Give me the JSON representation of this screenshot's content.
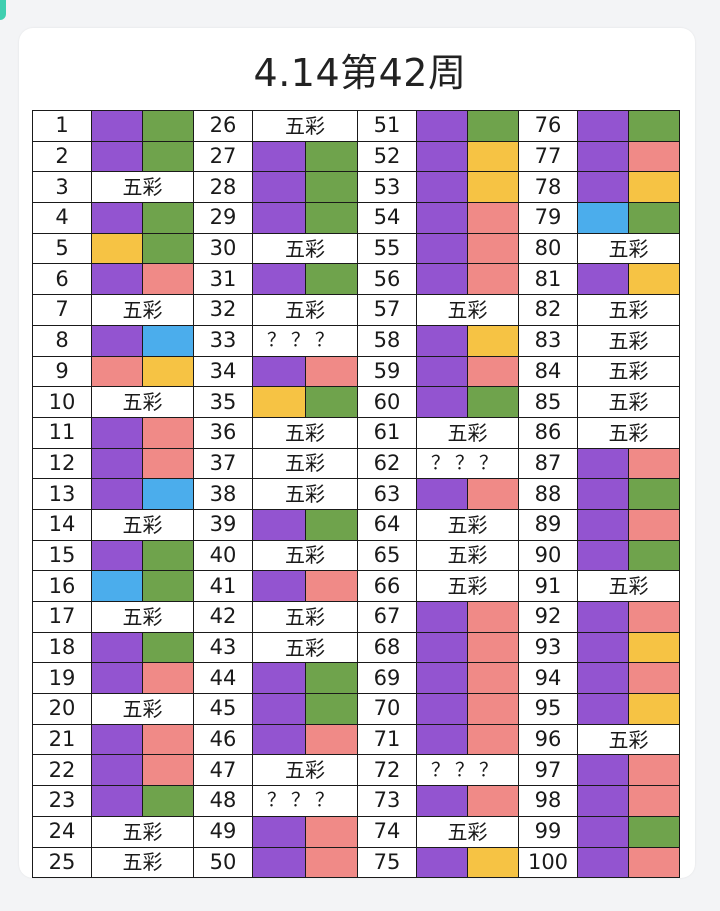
{
  "title": "4.14第42周",
  "colors": {
    "purple": "#9354d0",
    "green": "#6fa34c",
    "yellow": "#f6c344",
    "pink": "#f08a87",
    "blue": "#4badec"
  },
  "entries": [
    {
      "n": "1",
      "kind": "pair",
      "left": "purple",
      "right": "green"
    },
    {
      "n": "2",
      "kind": "pair",
      "left": "purple",
      "right": "green"
    },
    {
      "n": "3",
      "kind": "text",
      "text": "五彩"
    },
    {
      "n": "4",
      "kind": "pair",
      "left": "purple",
      "right": "green"
    },
    {
      "n": "5",
      "kind": "pair",
      "left": "yellow",
      "right": "green"
    },
    {
      "n": "6",
      "kind": "pair",
      "left": "purple",
      "right": "pink"
    },
    {
      "n": "7",
      "kind": "text",
      "text": "五彩"
    },
    {
      "n": "8",
      "kind": "pair",
      "left": "purple",
      "right": "blue"
    },
    {
      "n": "9",
      "kind": "pair",
      "left": "pink",
      "right": "yellow"
    },
    {
      "n": "10",
      "kind": "text",
      "text": "五彩"
    },
    {
      "n": "11",
      "kind": "pair",
      "left": "purple",
      "right": "pink"
    },
    {
      "n": "12",
      "kind": "pair",
      "left": "purple",
      "right": "pink"
    },
    {
      "n": "13",
      "kind": "pair",
      "left": "purple",
      "right": "blue"
    },
    {
      "n": "14",
      "kind": "text",
      "text": "五彩"
    },
    {
      "n": "15",
      "kind": "pair",
      "left": "purple",
      "right": "green"
    },
    {
      "n": "16",
      "kind": "pair",
      "left": "blue",
      "right": "green"
    },
    {
      "n": "17",
      "kind": "text",
      "text": "五彩"
    },
    {
      "n": "18",
      "kind": "pair",
      "left": "purple",
      "right": "green"
    },
    {
      "n": "19",
      "kind": "pair",
      "left": "purple",
      "right": "pink"
    },
    {
      "n": "20",
      "kind": "text",
      "text": "五彩"
    },
    {
      "n": "21",
      "kind": "pair",
      "left": "purple",
      "right": "pink"
    },
    {
      "n": "22",
      "kind": "pair",
      "left": "purple",
      "right": "pink"
    },
    {
      "n": "23",
      "kind": "pair",
      "left": "purple",
      "right": "green"
    },
    {
      "n": "24",
      "kind": "text",
      "text": "五彩"
    },
    {
      "n": "25",
      "kind": "text",
      "text": "五彩"
    },
    {
      "n": "26",
      "kind": "text",
      "text": "五彩"
    },
    {
      "n": "27",
      "kind": "pair",
      "left": "purple",
      "right": "green"
    },
    {
      "n": "28",
      "kind": "pair",
      "left": "purple",
      "right": "green"
    },
    {
      "n": "29",
      "kind": "pair",
      "left": "purple",
      "right": "green"
    },
    {
      "n": "30",
      "kind": "text",
      "text": "五彩"
    },
    {
      "n": "31",
      "kind": "pair",
      "left": "purple",
      "right": "green"
    },
    {
      "n": "32",
      "kind": "text",
      "text": "五彩"
    },
    {
      "n": "33",
      "kind": "q",
      "text": "？？？"
    },
    {
      "n": "34",
      "kind": "pair",
      "left": "purple",
      "right": "pink"
    },
    {
      "n": "35",
      "kind": "pair",
      "left": "yellow",
      "right": "green"
    },
    {
      "n": "36",
      "kind": "text",
      "text": "五彩"
    },
    {
      "n": "37",
      "kind": "text",
      "text": "五彩"
    },
    {
      "n": "38",
      "kind": "text",
      "text": "五彩"
    },
    {
      "n": "39",
      "kind": "pair",
      "left": "purple",
      "right": "green"
    },
    {
      "n": "40",
      "kind": "text",
      "text": "五彩"
    },
    {
      "n": "41",
      "kind": "pair",
      "left": "purple",
      "right": "pink"
    },
    {
      "n": "42",
      "kind": "text",
      "text": "五彩"
    },
    {
      "n": "43",
      "kind": "text",
      "text": "五彩"
    },
    {
      "n": "44",
      "kind": "pair",
      "left": "purple",
      "right": "green"
    },
    {
      "n": "45",
      "kind": "pair",
      "left": "purple",
      "right": "green"
    },
    {
      "n": "46",
      "kind": "pair",
      "left": "purple",
      "right": "pink"
    },
    {
      "n": "47",
      "kind": "text",
      "text": "五彩"
    },
    {
      "n": "48",
      "kind": "q",
      "text": "？？？"
    },
    {
      "n": "49",
      "kind": "pair",
      "left": "purple",
      "right": "pink"
    },
    {
      "n": "50",
      "kind": "pair",
      "left": "purple",
      "right": "pink"
    },
    {
      "n": "51",
      "kind": "pair",
      "left": "purple",
      "right": "green"
    },
    {
      "n": "52",
      "kind": "pair",
      "left": "purple",
      "right": "yellow"
    },
    {
      "n": "53",
      "kind": "pair",
      "left": "purple",
      "right": "yellow"
    },
    {
      "n": "54",
      "kind": "pair",
      "left": "purple",
      "right": "pink"
    },
    {
      "n": "55",
      "kind": "pair",
      "left": "purple",
      "right": "pink"
    },
    {
      "n": "56",
      "kind": "pair",
      "left": "purple",
      "right": "pink"
    },
    {
      "n": "57",
      "kind": "text",
      "text": "五彩"
    },
    {
      "n": "58",
      "kind": "pair",
      "left": "purple",
      "right": "yellow"
    },
    {
      "n": "59",
      "kind": "pair",
      "left": "purple",
      "right": "pink"
    },
    {
      "n": "60",
      "kind": "pair",
      "left": "purple",
      "right": "green"
    },
    {
      "n": "61",
      "kind": "text",
      "text": "五彩"
    },
    {
      "n": "62",
      "kind": "q",
      "text": "？？？"
    },
    {
      "n": "63",
      "kind": "pair",
      "left": "purple",
      "right": "pink"
    },
    {
      "n": "64",
      "kind": "text",
      "text": "五彩"
    },
    {
      "n": "65",
      "kind": "text",
      "text": "五彩"
    },
    {
      "n": "66",
      "kind": "text",
      "text": "五彩"
    },
    {
      "n": "67",
      "kind": "pair",
      "left": "purple",
      "right": "pink"
    },
    {
      "n": "68",
      "kind": "pair",
      "left": "purple",
      "right": "pink"
    },
    {
      "n": "69",
      "kind": "pair",
      "left": "purple",
      "right": "pink"
    },
    {
      "n": "70",
      "kind": "pair",
      "left": "purple",
      "right": "pink"
    },
    {
      "n": "71",
      "kind": "pair",
      "left": "purple",
      "right": "pink"
    },
    {
      "n": "72",
      "kind": "q",
      "text": "？？？"
    },
    {
      "n": "73",
      "kind": "pair",
      "left": "purple",
      "right": "pink"
    },
    {
      "n": "74",
      "kind": "text",
      "text": "五彩"
    },
    {
      "n": "75",
      "kind": "pair",
      "left": "purple",
      "right": "yellow"
    },
    {
      "n": "76",
      "kind": "pair",
      "left": "purple",
      "right": "green"
    },
    {
      "n": "77",
      "kind": "pair",
      "left": "purple",
      "right": "pink"
    },
    {
      "n": "78",
      "kind": "pair",
      "left": "purple",
      "right": "yellow"
    },
    {
      "n": "79",
      "kind": "pair",
      "left": "blue",
      "right": "green"
    },
    {
      "n": "80",
      "kind": "text",
      "text": "五彩"
    },
    {
      "n": "81",
      "kind": "pair",
      "left": "purple",
      "right": "yellow"
    },
    {
      "n": "82",
      "kind": "text",
      "text": "五彩"
    },
    {
      "n": "83",
      "kind": "text",
      "text": "五彩"
    },
    {
      "n": "84",
      "kind": "text",
      "text": "五彩"
    },
    {
      "n": "85",
      "kind": "text",
      "text": "五彩"
    },
    {
      "n": "86",
      "kind": "text",
      "text": "五彩"
    },
    {
      "n": "87",
      "kind": "pair",
      "left": "purple",
      "right": "pink"
    },
    {
      "n": "88",
      "kind": "pair",
      "left": "purple",
      "right": "green"
    },
    {
      "n": "89",
      "kind": "pair",
      "left": "purple",
      "right": "pink"
    },
    {
      "n": "90",
      "kind": "pair",
      "left": "purple",
      "right": "green"
    },
    {
      "n": "91",
      "kind": "text",
      "text": "五彩"
    },
    {
      "n": "92",
      "kind": "pair",
      "left": "purple",
      "right": "pink"
    },
    {
      "n": "93",
      "kind": "pair",
      "left": "purple",
      "right": "yellow"
    },
    {
      "n": "94",
      "kind": "pair",
      "left": "purple",
      "right": "pink"
    },
    {
      "n": "95",
      "kind": "pair",
      "left": "purple",
      "right": "yellow"
    },
    {
      "n": "96",
      "kind": "text",
      "text": "五彩"
    },
    {
      "n": "97",
      "kind": "pair",
      "left": "purple",
      "right": "pink"
    },
    {
      "n": "98",
      "kind": "pair",
      "left": "purple",
      "right": "pink"
    },
    {
      "n": "99",
      "kind": "pair",
      "left": "purple",
      "right": "green"
    },
    {
      "n": "100",
      "kind": "pair",
      "left": "purple",
      "right": "pink"
    }
  ]
}
